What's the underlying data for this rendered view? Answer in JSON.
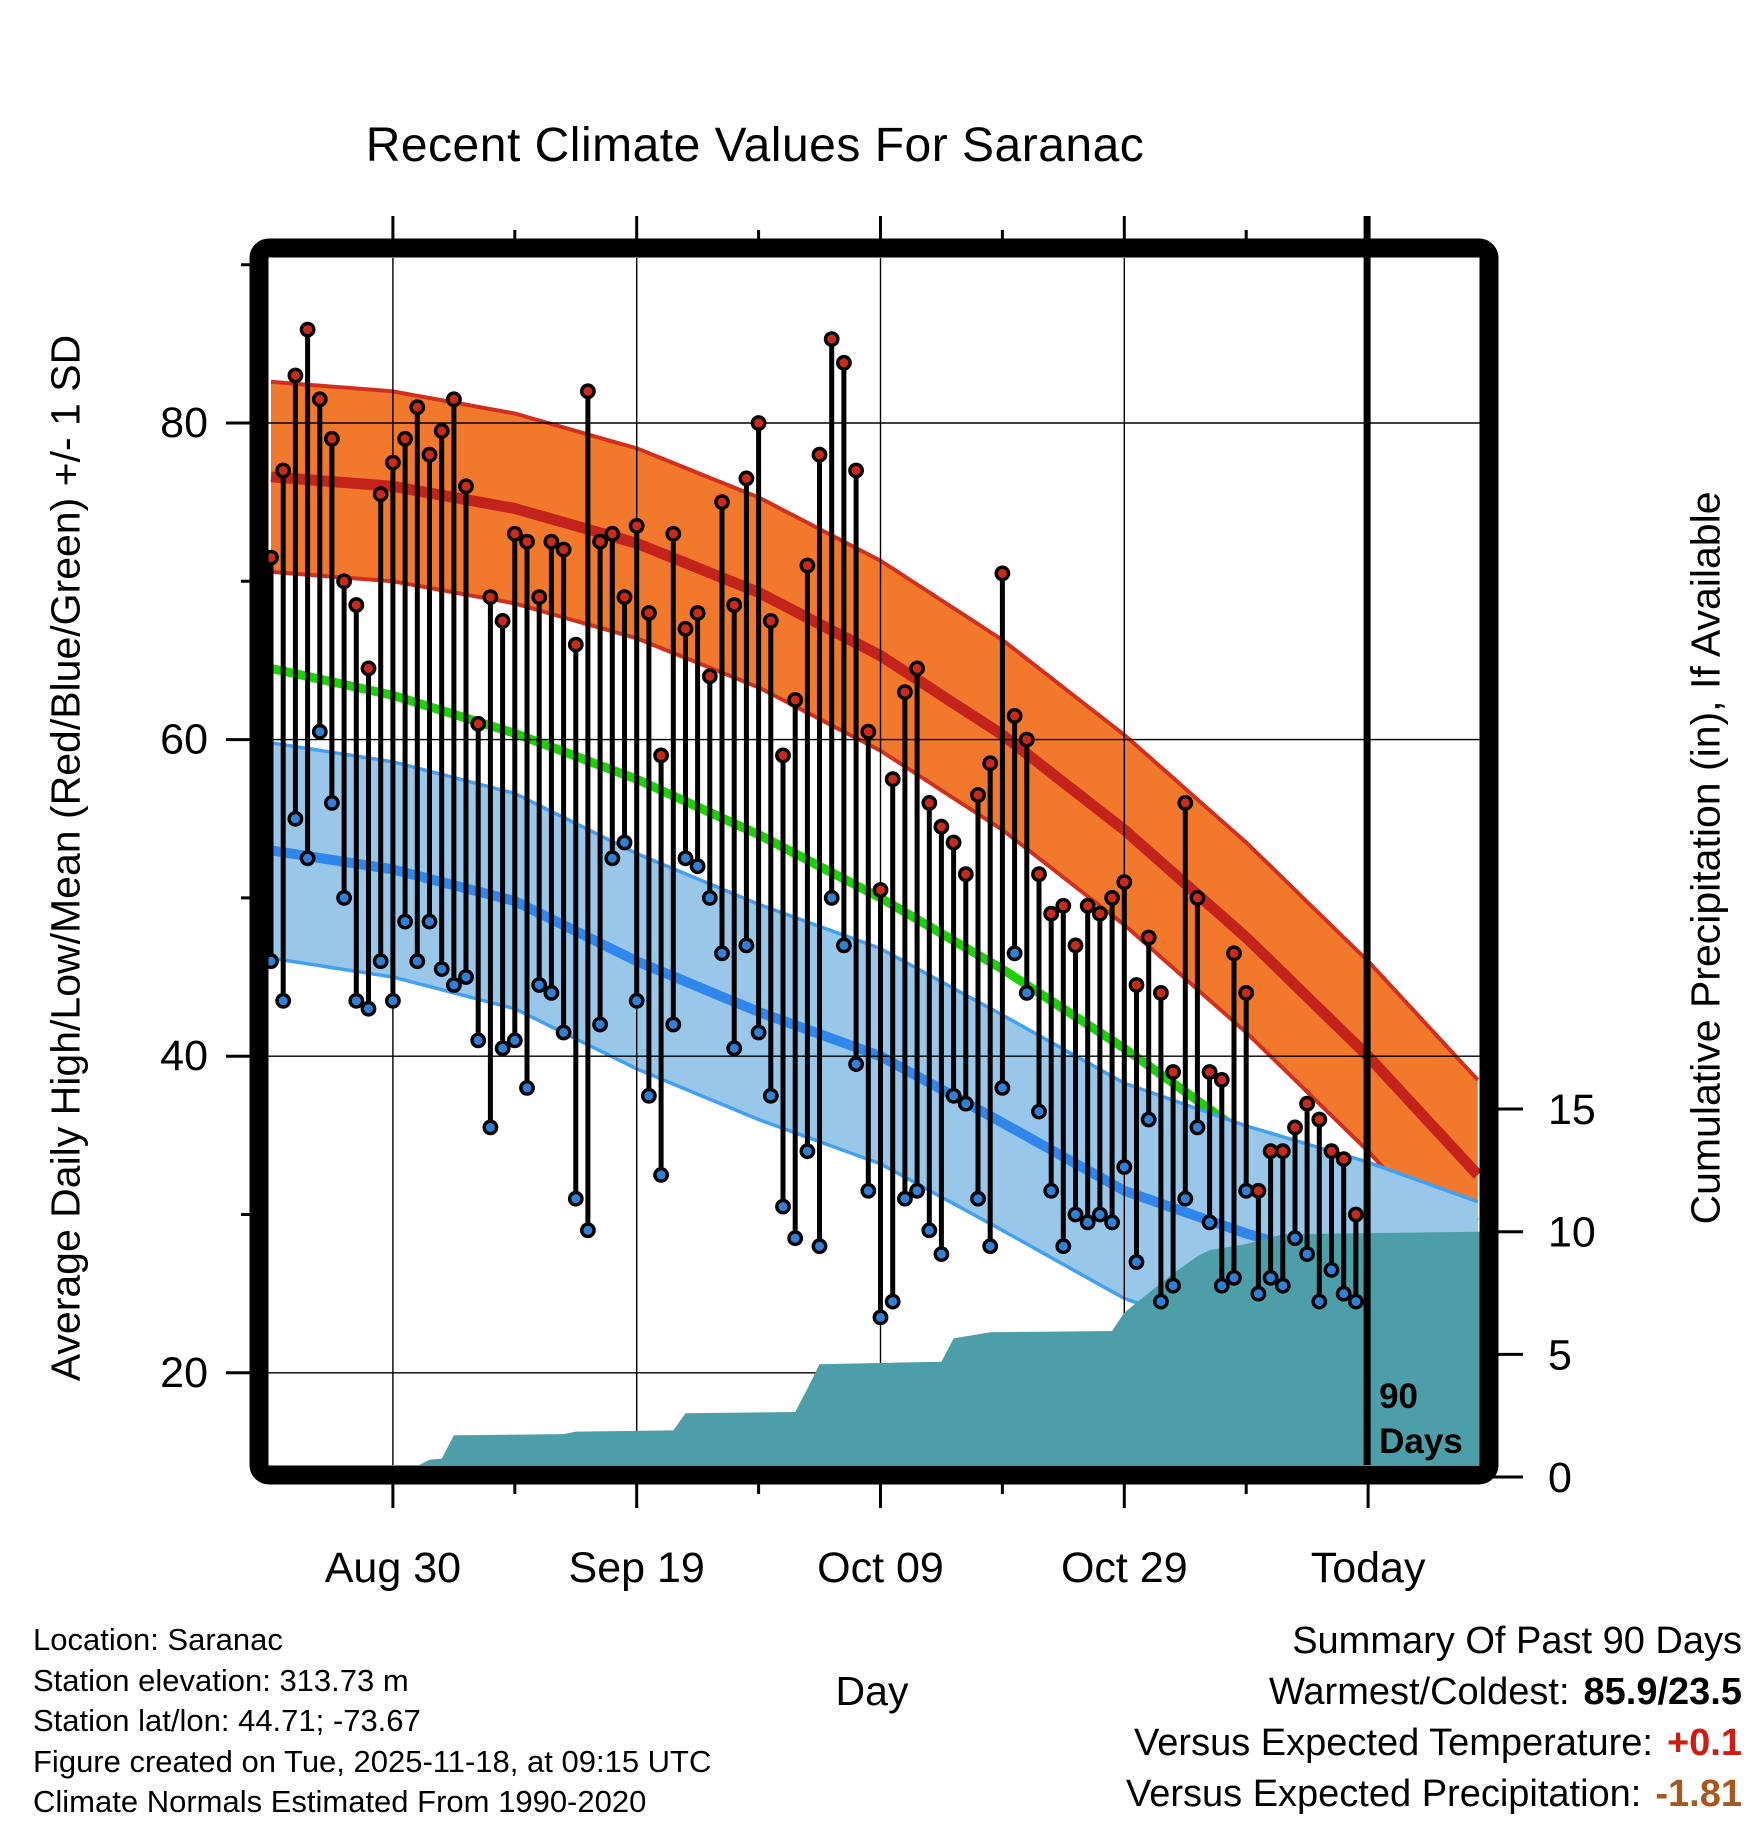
{
  "title": "Recent Climate Values For Saranac",
  "plot": {
    "x_axis": {
      "title": "Day",
      "tick_labels": [
        "Aug 30",
        "Sep 19",
        "Oct 09",
        "Oct 29",
        "Today"
      ],
      "tick_days": [
        10,
        30,
        50,
        70,
        90
      ],
      "minor_tick_days": [
        20,
        40,
        60,
        80
      ]
    },
    "y_left": {
      "title": "Average Daily High/Low/Mean (Red/Blue/Green) +/- 1 SD",
      "ticks": [
        20,
        40,
        60,
        80
      ],
      "minor_ticks": [
        30,
        50,
        70,
        90
      ]
    },
    "y_right": {
      "title": "Cumulative Precipitation (in), If Available",
      "ticks": [
        0,
        5,
        10,
        15
      ]
    },
    "annotation": {
      "lines": [
        "90",
        "Days"
      ],
      "day": 90
    }
  },
  "chart_data": {
    "type": "composite",
    "description": "Daily observed high/low temperature stems (red/blue dots), climate-normal high band (orange), low band (light blue), mean line (green), and cumulative precipitation step area (teal)",
    "start_date": "Aug 20",
    "end_date": "Nov 17",
    "today_day": 90,
    "temp_axis_ticks": [
      20,
      40,
      60,
      80
    ],
    "precip_axis_ticks": [
      0,
      5,
      10,
      15
    ],
    "daily_high_f": [
      71.5,
      77,
      83,
      85.9,
      81.5,
      79,
      70,
      68.5,
      64.5,
      75.5,
      77.5,
      79,
      81,
      78,
      79.5,
      81.5,
      76,
      61,
      69,
      67.5,
      73,
      72.5,
      69,
      72.5,
      72,
      66,
      82,
      72.5,
      73,
      69,
      73.5,
      68,
      59,
      73,
      67,
      68,
      64,
      75,
      68.5,
      76.5,
      80,
      67.5,
      59,
      62.5,
      71,
      78,
      85.3,
      83.8,
      77,
      60.5,
      50.5,
      57.5,
      63,
      64.5,
      56,
      54.5,
      53.5,
      51.5,
      56.5,
      58.5,
      70.5,
      61.5,
      60,
      51.5,
      49,
      49.5,
      47,
      49.5,
      49,
      50,
      51,
      44.5,
      47.5,
      44,
      39,
      56,
      50,
      39,
      38.5,
      46.5,
      44,
      31.5,
      34,
      34,
      35.5,
      37,
      36,
      34,
      33.5,
      30
    ],
    "daily_low_f": [
      46,
      43.5,
      55,
      52.5,
      60.5,
      56,
      50,
      43.5,
      43,
      46,
      43.5,
      48.5,
      46,
      48.5,
      45.5,
      44.5,
      45,
      41,
      35.5,
      40.5,
      41,
      38,
      44.5,
      44,
      41.5,
      31,
      29,
      42,
      52.5,
      53.5,
      43.5,
      37.5,
      32.5,
      42,
      52.5,
      52,
      50,
      46.5,
      40.5,
      47,
      41.5,
      37.5,
      30.5,
      28.5,
      34,
      28,
      50,
      47,
      39.5,
      31.5,
      23.5,
      24.5,
      31,
      31.5,
      29,
      27.5,
      37.5,
      37,
      31,
      28,
      38,
      46.5,
      44,
      36.5,
      31.5,
      28,
      30,
      29.5,
      30,
      29.5,
      33,
      27,
      36,
      24.5,
      25.5,
      31,
      35.5,
      29.5,
      25.5,
      26,
      31.5,
      25,
      26,
      25.5,
      28.5,
      27.5,
      24.5,
      26.5,
      25,
      24.5
    ],
    "normals": {
      "anchor_days": [
        0,
        10,
        20,
        30,
        40,
        50,
        60,
        70,
        80,
        90,
        99
      ],
      "high_mean": [
        76.6,
        76.0,
        74.6,
        72.4,
        69.3,
        65.3,
        60.3,
        54.3,
        47.5,
        40.0,
        32.5
      ],
      "green_mean": [
        64.5,
        62.8,
        60.4,
        57.5,
        54.0,
        50.0,
        45.5,
        40.5,
        35.0,
        31.0,
        29.5
      ],
      "low_mean": [
        53.0,
        51.8,
        49.8,
        46.0,
        42.8,
        40.0,
        35.8,
        31.5,
        28.8,
        26.5,
        24.0
      ],
      "high_sd": 6.0,
      "low_sd": 6.8
    },
    "cumulative_precip_in": [
      [
        0,
        0
      ],
      [
        7,
        0.05
      ],
      [
        8,
        0.15
      ],
      [
        10,
        0.3
      ],
      [
        12,
        0.45
      ],
      [
        13,
        0.7
      ],
      [
        14,
        0.75
      ],
      [
        15,
        1.7
      ],
      [
        24,
        1.75
      ],
      [
        25,
        1.85
      ],
      [
        33,
        1.9
      ],
      [
        34,
        2.6
      ],
      [
        43,
        2.65
      ],
      [
        44,
        3.6
      ],
      [
        45,
        4.6
      ],
      [
        55,
        4.7
      ],
      [
        56,
        5.65
      ],
      [
        59,
        5.9
      ],
      [
        69,
        5.95
      ],
      [
        70,
        6.7
      ],
      [
        72,
        7.5
      ],
      [
        74,
        8.3
      ],
      [
        76,
        9.0
      ],
      [
        77,
        9.25
      ],
      [
        80,
        9.5
      ],
      [
        83,
        9.9
      ],
      [
        99,
        10.0
      ]
    ]
  },
  "colors": {
    "background": "#FFFFFF",
    "frame": "#000000",
    "grid": "#000000",
    "orange_band": "#F2792C",
    "high_edge": "#D2301F",
    "high_mean_line": "#C3231A",
    "green_mean_line": "#1BD301",
    "blue_band": "#99C7EA",
    "blue_edge": "#41A0F0",
    "low_mean_line": "#2F87EC",
    "high_dot": "#CB2A1B",
    "low_dot": "#2F80D6",
    "stem": "#000000",
    "precip_area": "#4C9FA8",
    "summary_temp_value": "#D11A12",
    "summary_precip_value": "#A8571E"
  },
  "footer": {
    "lines": [
      "Location: Saranac",
      "Station elevation: 313.73 m",
      "Station lat/lon: 44.71; -73.67",
      "Figure created on Tue, 2025-11-18, at 09:15 UTC",
      "Climate Normals Estimated From 1990-2020"
    ]
  },
  "summary": {
    "heading": "Summary Of Past 90 Days",
    "rows": [
      {
        "label": "Warmest/Coldest:",
        "value": "85.9/23.5",
        "value_color": "#000000"
      },
      {
        "label": "Versus Expected Temperature:",
        "value": "+0.1",
        "value_color": "#D11A12"
      },
      {
        "label": "Versus Expected Precipitation:",
        "value": "-1.81",
        "value_color": "#A8571E"
      }
    ]
  }
}
